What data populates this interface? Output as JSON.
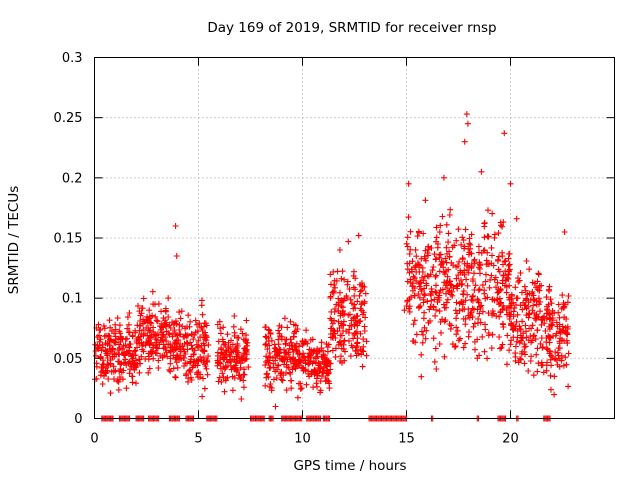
{
  "chart_data": {
    "type": "scatter",
    "title": "Day 169 of 2019, SRMTID for receiver rnsp",
    "xlabel": "GPS time / hours",
    "ylabel": "SRMTID / TECUs",
    "xlim": [
      0,
      25
    ],
    "ylim": [
      0,
      0.3
    ],
    "xticks": [
      0,
      5,
      10,
      15,
      20
    ],
    "xtick_labels": [
      "0",
      "5",
      "10",
      "15",
      "20"
    ],
    "yticks": [
      0,
      0.05,
      0.1,
      0.15,
      0.2,
      0.25,
      0.3
    ],
    "ytick_labels": [
      "0",
      "0.05",
      "0.1",
      "0.15",
      "0.2",
      "0.25",
      "0.3"
    ],
    "grid": true,
    "marker": "+",
    "color": "#ff0000",
    "series": [
      {
        "name": "SRMTID",
        "segments": [
          {
            "x_start": 0.0,
            "x_end": 2.0,
            "center": 0.055,
            "spread": 0.018
          },
          {
            "x_start": 2.0,
            "x_end": 3.6,
            "center": 0.068,
            "spread": 0.02
          },
          {
            "x_start": 3.6,
            "x_end": 5.5,
            "center": 0.06,
            "spread": 0.02
          },
          {
            "x_start": 5.9,
            "x_end": 7.4,
            "center": 0.05,
            "spread": 0.016
          },
          {
            "x_start": 8.2,
            "x_end": 10.2,
            "center": 0.052,
            "spread": 0.018
          },
          {
            "x_start": 10.2,
            "x_end": 11.3,
            "center": 0.045,
            "spread": 0.012
          },
          {
            "x_start": 11.3,
            "x_end": 13.1,
            "center": 0.085,
            "spread": 0.025
          },
          {
            "x_start": 15.0,
            "x_end": 17.0,
            "center": 0.11,
            "spread": 0.035
          },
          {
            "x_start": 17.0,
            "x_end": 20.0,
            "center": 0.11,
            "spread": 0.04
          },
          {
            "x_start": 20.0,
            "x_end": 21.5,
            "center": 0.085,
            "spread": 0.03
          },
          {
            "x_start": 21.5,
            "x_end": 22.8,
            "center": 0.07,
            "spread": 0.025
          }
        ],
        "notable_points": [
          {
            "x": 3.9,
            "y": 0.16
          },
          {
            "x": 3.95,
            "y": 0.135
          },
          {
            "x": 17.9,
            "y": 0.253
          },
          {
            "x": 17.95,
            "y": 0.245
          },
          {
            "x": 17.8,
            "y": 0.23
          },
          {
            "x": 19.7,
            "y": 0.237
          },
          {
            "x": 20.3,
            "y": 0.166
          },
          {
            "x": 11.8,
            "y": 0.14
          },
          {
            "x": 12.2,
            "y": 0.147
          },
          {
            "x": 12.7,
            "y": 0.152
          },
          {
            "x": 15.1,
            "y": 0.195
          },
          {
            "x": 16.8,
            "y": 0.2
          },
          {
            "x": 18.6,
            "y": 0.205
          },
          {
            "x": 20.0,
            "y": 0.195
          },
          {
            "x": 22.6,
            "y": 0.155
          },
          {
            "x": 8.7,
            "y": 0.01
          },
          {
            "x": 14.9,
            "y": 0.09
          }
        ],
        "zero_bands": [
          [
            0.35,
            0.9
          ],
          [
            1.2,
            1.7
          ],
          [
            2.0,
            2.4
          ],
          [
            2.6,
            3.1
          ],
          [
            3.6,
            4.1
          ],
          [
            4.4,
            4.8
          ],
          [
            5.4,
            5.9
          ],
          [
            7.5,
            8.2
          ],
          [
            8.4,
            8.6
          ],
          [
            9.0,
            10.0
          ],
          [
            10.2,
            10.9
          ],
          [
            11.0,
            11.3
          ],
          [
            13.2,
            15.0
          ],
          [
            16.2,
            16.3
          ],
          [
            18.4,
            18.5
          ],
          [
            19.4,
            19.8
          ],
          [
            20.3,
            20.4
          ],
          [
            21.6,
            21.9
          ]
        ]
      }
    ]
  }
}
